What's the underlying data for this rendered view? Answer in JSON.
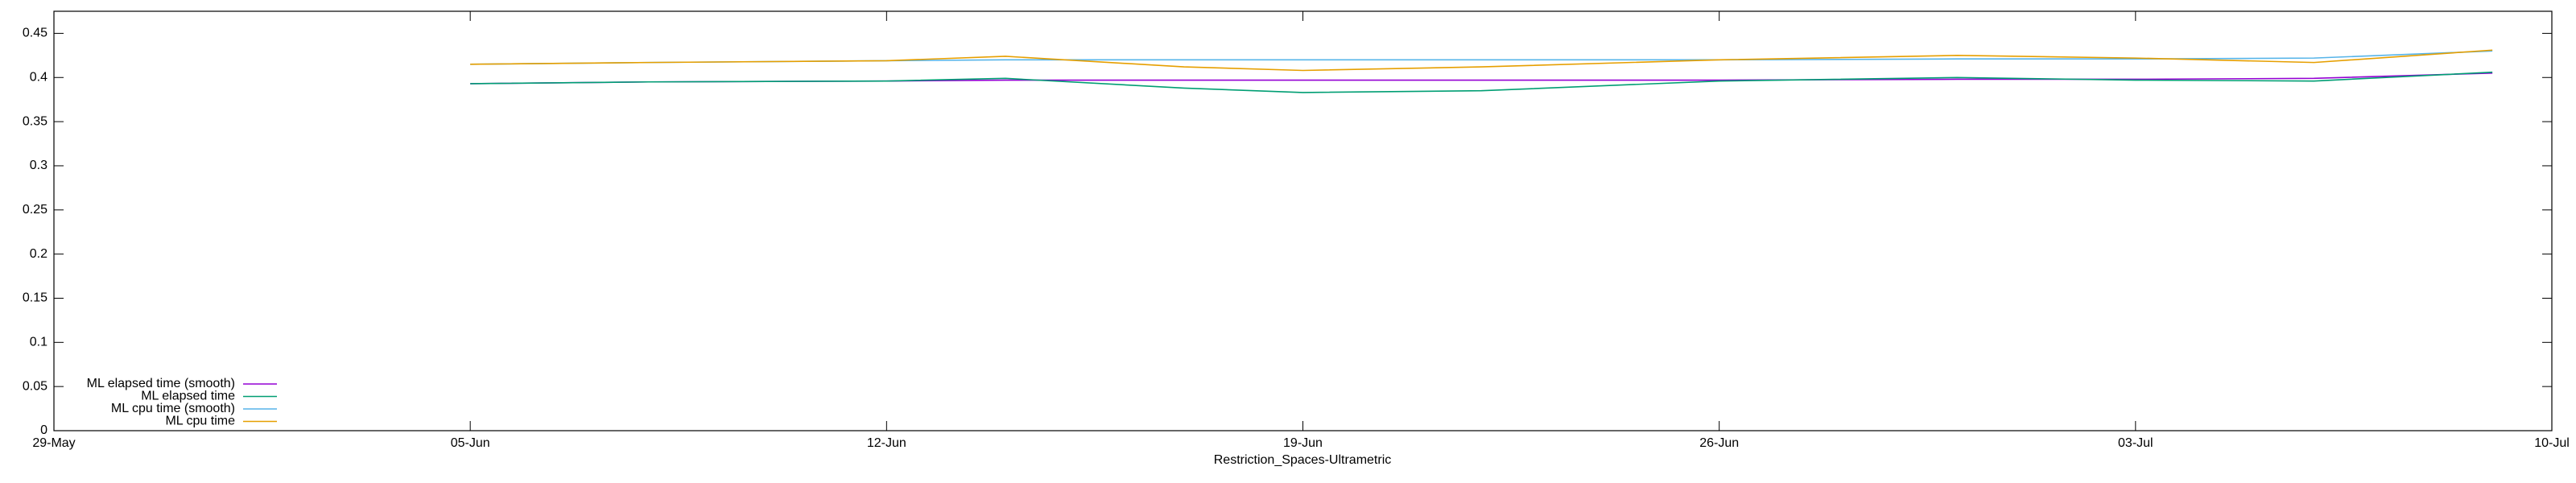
{
  "chart_data": {
    "type": "line",
    "x_label": "Restriction_Spaces-Ultrametric",
    "x": [
      "05-Jun",
      "08-Jun",
      "12-Jun",
      "14-Jun",
      "17-Jun",
      "19-Jun",
      "22-Jun",
      "26-Jun",
      "30-Jun",
      "03-Jul",
      "06-Jul",
      "09-Jul"
    ],
    "series": [
      {
        "name": "ML elapsed time (smooth)",
        "color": "#9400d3",
        "values": [
          0.393,
          0.395,
          0.396,
          0.397,
          0.397,
          0.397,
          0.397,
          0.397,
          0.398,
          0.398,
          0.399,
          0.405
        ]
      },
      {
        "name": "ML elapsed time",
        "color": "#009e73",
        "values": [
          0.393,
          0.395,
          0.396,
          0.399,
          0.388,
          0.383,
          0.385,
          0.396,
          0.4,
          0.397,
          0.396,
          0.406
        ]
      },
      {
        "name": "ML cpu time (smooth)",
        "color": "#56b4e9",
        "values": [
          0.415,
          0.417,
          0.419,
          0.42,
          0.42,
          0.42,
          0.42,
          0.42,
          0.421,
          0.421,
          0.422,
          0.43
        ]
      },
      {
        "name": "ML cpu time",
        "color": "#e69f00",
        "values": [
          0.415,
          0.417,
          0.419,
          0.424,
          0.412,
          0.408,
          0.412,
          0.42,
          0.425,
          0.422,
          0.417,
          0.431
        ]
      }
    ],
    "xlim": [
      "29-May",
      "10-Jul"
    ],
    "xticks": [
      "29-May",
      "05-Jun",
      "12-Jun",
      "19-Jun",
      "26-Jun",
      "03-Jul",
      "10-Jul"
    ],
    "ylim": [
      0,
      0.475
    ],
    "yticks": [
      0,
      0.05,
      0.1,
      0.15,
      0.2,
      0.25,
      0.3,
      0.35,
      0.4,
      0.45
    ],
    "legend": "lower left"
  }
}
